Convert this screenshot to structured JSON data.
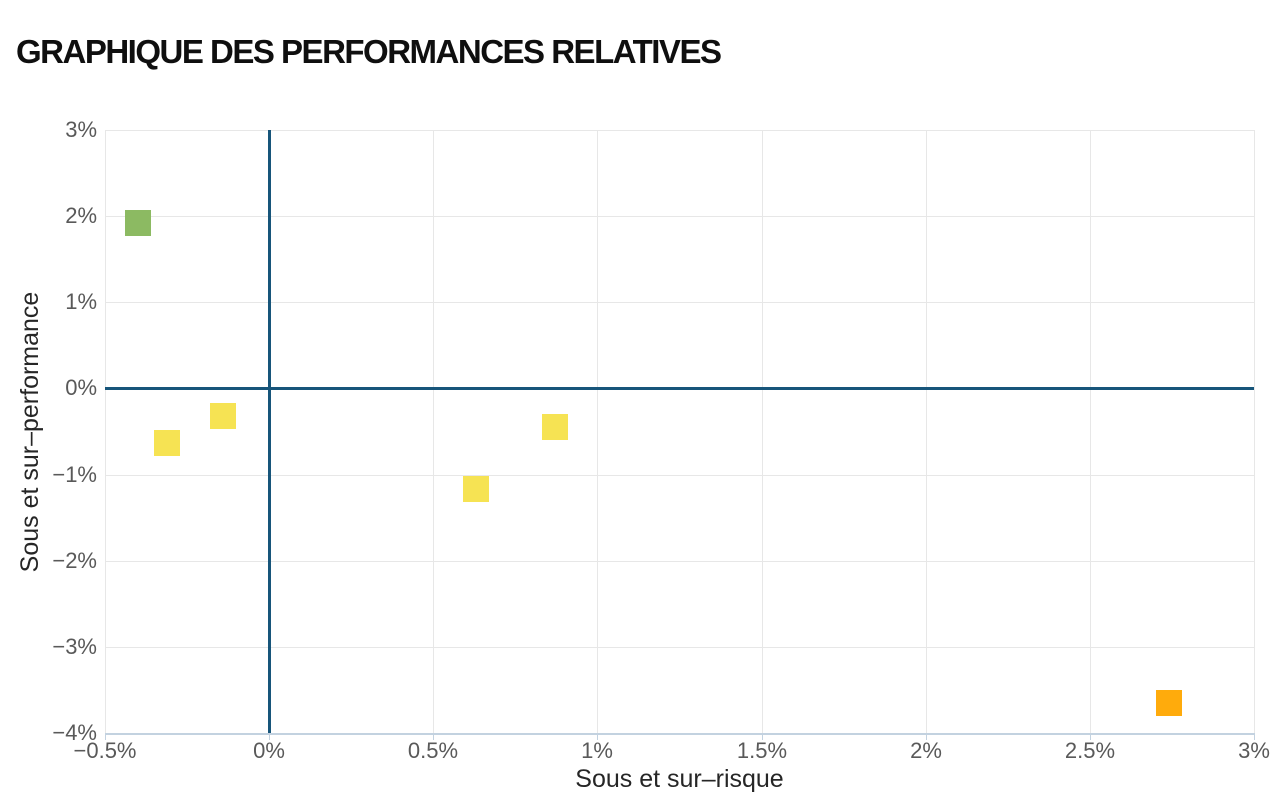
{
  "title": "GRAPHIQUE DES PERFORMANCES RELATIVES",
  "chart_data": {
    "type": "scatter",
    "title": "GRAPHIQUE DES PERFORMANCES RELATIVES",
    "xlabel": "Sous et sur–risque",
    "ylabel": "Sous et sur–performance",
    "xlim": [
      -0.5,
      3
    ],
    "ylim": [
      -4,
      3
    ],
    "x_ticks": [
      -0.5,
      0,
      0.5,
      1,
      1.5,
      2,
      2.5,
      3
    ],
    "x_tick_labels": [
      "−0.5%",
      "0%",
      "0.5%",
      "1%",
      "1.5%",
      "2%",
      "2.5%",
      "3%"
    ],
    "y_ticks": [
      3,
      2,
      1,
      0,
      -1,
      -2,
      -3,
      -4
    ],
    "y_tick_labels": [
      "3%",
      "2%",
      "1%",
      "0%",
      "−1%",
      "−2%",
      "−3%",
      "−4%"
    ],
    "grid": true,
    "zero_lines": true,
    "legend": "none",
    "marker": "square",
    "marker_size_px": 26,
    "points": [
      {
        "x": -0.4,
        "y": 1.92,
        "color": "#8cba62",
        "color_name": "green"
      },
      {
        "x": -0.31,
        "y": -0.63,
        "color": "#f6e353",
        "color_name": "yellow"
      },
      {
        "x": -0.14,
        "y": -0.32,
        "color": "#f6e353",
        "color_name": "yellow"
      },
      {
        "x": 0.63,
        "y": -1.17,
        "color": "#f6e353",
        "color_name": "yellow"
      },
      {
        "x": 0.87,
        "y": -0.45,
        "color": "#f6e353",
        "color_name": "yellow"
      },
      {
        "x": 2.74,
        "y": -3.65,
        "color": "#ffab0c",
        "color_name": "orange"
      }
    ]
  },
  "colors": {
    "grid": "#e7e7e7",
    "axis_light": "#c3d2e0",
    "axis_dark": "#17557a",
    "tick_text": "#595959",
    "axis_title_text": "#262626",
    "title_text": "#0f0f0f",
    "background": "#ffffff"
  }
}
